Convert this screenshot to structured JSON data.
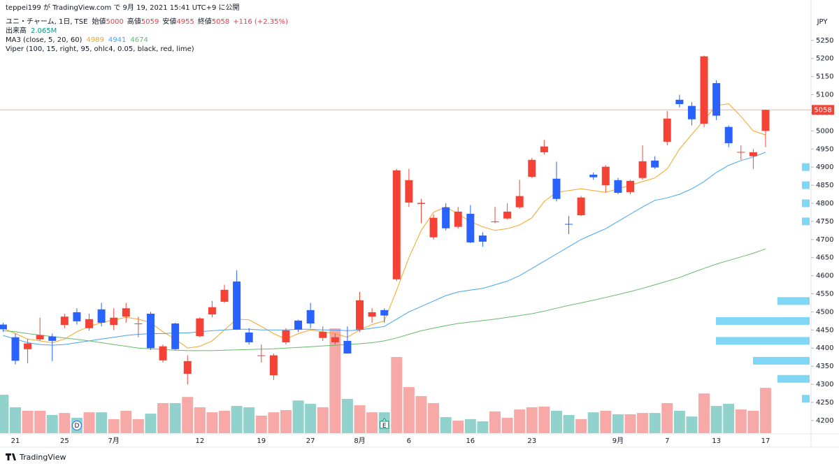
{
  "header": {
    "published": "teppei199 が TradingView.com で 9月 19, 2021 15:41 UTC+9 に公開",
    "symbol": "ユニ・チャーム, 1日, TSE",
    "ohlc_labels": [
      "始値",
      "高値",
      "安値",
      "終値"
    ],
    "change": "+116 (+2.35%)",
    "volume_title": "出来高",
    "volume_label": "2.065M",
    "ma_title": "MA3 (close, 5, 20, 60)",
    "viper_title": "Viper (100, 15, right, 95, ohlc4, 0.05, black, red, lime)",
    "currency": "JPY",
    "brand": "TradingView"
  },
  "chart_data": {
    "type": "candlestick",
    "categories": [
      null,
      "21",
      null,
      null,
      null,
      "25",
      null,
      null,
      null,
      "7月",
      null,
      null,
      null,
      null,
      null,
      null,
      "12",
      null,
      null,
      null,
      null,
      "19",
      null,
      null,
      null,
      "27",
      null,
      null,
      null,
      "8月",
      null,
      null,
      null,
      "6",
      null,
      null,
      null,
      null,
      "16",
      null,
      null,
      null,
      null,
      "23",
      null,
      null,
      null,
      null,
      null,
      null,
      "9月",
      null,
      null,
      null,
      "7",
      null,
      null,
      null,
      "13",
      null,
      null,
      null,
      "17"
    ],
    "open": [
      4465,
      4430,
      4397,
      4424,
      4432,
      4464,
      4499,
      4455,
      4507,
      4464,
      4487,
      4466,
      4495,
      4366,
      4468,
      4329,
      4433,
      4493,
      4528,
      4584,
      4443,
      4378,
      4325,
      4416,
      4476,
      4505,
      4428,
      4416,
      4420,
      4451,
      4487,
      4505,
      4590,
      4802,
      4798,
      4706,
      4789,
      4735,
      4771,
      4711,
      4748,
      4758,
      4789,
      4873,
      4941,
      4868,
      4743,
      4767,
      4879,
      4850,
      4864,
      4831,
      4870,
      4918,
      4970,
      5086,
      5069,
      5020,
      5132,
      5011,
      4940,
      4930,
      5000
    ],
    "high": [
      4470,
      4440,
      4425,
      4484,
      4440,
      4495,
      4510,
      4495,
      4525,
      4510,
      4525,
      4487,
      4500,
      4410,
      4470,
      4380,
      4485,
      4530,
      4575,
      4615,
      4455,
      4410,
      4385,
      4455,
      4478,
      4525,
      4460,
      4440,
      4460,
      4555,
      4510,
      4510,
      4895,
      4895,
      4812,
      4770,
      4800,
      4790,
      4795,
      4720,
      4790,
      4800,
      4865,
      4925,
      4975,
      4915,
      4765,
      4820,
      4885,
      4905,
      4870,
      4865,
      4960,
      4930,
      5055,
      5100,
      5080,
      5208,
      5140,
      5015,
      4960,
      4950,
      5059
    ],
    "low": [
      4445,
      4355,
      4358,
      4420,
      4364,
      4455,
      4465,
      4448,
      4460,
      4450,
      4470,
      4430,
      4395,
      4360,
      4395,
      4300,
      4430,
      4485,
      4525,
      4450,
      4410,
      4360,
      4312,
      4410,
      4445,
      4455,
      4420,
      4410,
      4385,
      4445,
      4470,
      4470,
      4585,
      4790,
      4745,
      4700,
      4725,
      4730,
      4690,
      4680,
      4745,
      4755,
      4785,
      4870,
      4935,
      4805,
      4715,
      4765,
      4865,
      4830,
      4825,
      4825,
      4865,
      4895,
      4960,
      5065,
      5015,
      5010,
      5030,
      4955,
      4920,
      4895,
      4955
    ],
    "close": [
      4452,
      4365,
      4413,
      4436,
      4420,
      4487,
      4474,
      4480,
      4470,
      4484,
      4510,
      4468,
      4400,
      4405,
      4397,
      4364,
      4482,
      4513,
      4561,
      4451,
      4416,
      4380,
      4380,
      4449,
      4451,
      4468,
      4445,
      4430,
      4385,
      4532,
      4499,
      4490,
      4891,
      4864,
      4801,
      4760,
      4731,
      4777,
      4692,
      4694,
      4750,
      4777,
      4820,
      4920,
      4957,
      4812,
      4741,
      4816,
      4872,
      4901,
      4829,
      4862,
      4916,
      4899,
      5034,
      5074,
      5032,
      5206,
      5042,
      4966,
      4942,
      4941,
      5058
    ],
    "up_color": "#f44336",
    "down_color": "#2962ff",
    "volume": {
      "values": [
        1.75,
        1.18,
        1.02,
        1.02,
        0.83,
        0.92,
        0.7,
        0.95,
        0.95,
        0.64,
        1.02,
        0.64,
        0.89,
        1.37,
        1.37,
        1.65,
        1.18,
        0.95,
        1.02,
        1.24,
        1.18,
        0.8,
        0.95,
        1.05,
        1.49,
        1.34,
        1.18,
        4.77,
        1.56,
        1.27,
        0.95,
        0.95,
        3.47,
        2.1,
        1.69,
        1.37,
        0.73,
        0.57,
        0.64,
        0.54,
        0.99,
        0.7,
        1.08,
        1.18,
        1.21,
        1.02,
        0.83,
        0.64,
        0.95,
        1.02,
        0.86,
        0.86,
        0.92,
        0.92,
        1.37,
        1.02,
        0.76,
        1.81,
        1.24,
        1.34,
        1.08,
        1.02,
        2.065
      ],
      "up_color": "#f7a9a7",
      "down_color": "#92d2cc",
      "ylim": [
        0,
        19.1
      ]
    },
    "ma": {
      "series": [
        {
          "color": "#f5a623",
          "values": [
            4455,
            4440,
            4425,
            4420,
            4415,
            4425,
            4445,
            4460,
            4470,
            4478,
            4485,
            4480,
            4470,
            4445,
            4425,
            4400,
            4405,
            4420,
            4450,
            4480,
            4478,
            4460,
            4440,
            4425,
            4440,
            4450,
            4445,
            4440,
            4430,
            4450,
            4465,
            4475,
            4560,
            4650,
            4725,
            4775,
            4790,
            4770,
            4750,
            4735,
            4725,
            4730,
            4740,
            4760,
            4805,
            4830,
            4835,
            4840,
            4835,
            4830,
            4840,
            4850,
            4860,
            4870,
            4895,
            4950,
            4990,
            5030,
            5070,
            5075,
            5040,
            5000,
            4989
          ]
        },
        {
          "color": "#42a5f5",
          "values": [
            4435,
            4425,
            4415,
            4410,
            4408,
            4410,
            4415,
            4420,
            4425,
            4430,
            4435,
            4438,
            4440,
            4440,
            4442,
            4442,
            4445,
            4448,
            4450,
            4452,
            4452,
            4450,
            4450,
            4450,
            4452,
            4452,
            4450,
            4450,
            4448,
            4450,
            4455,
            4460,
            4480,
            4500,
            4515,
            4530,
            4545,
            4555,
            4560,
            4565,
            4575,
            4585,
            4600,
            4620,
            4640,
            4660,
            4680,
            4700,
            4715,
            4730,
            4750,
            4770,
            4790,
            4808,
            4815,
            4825,
            4840,
            4860,
            4885,
            4905,
            4918,
            4928,
            4941
          ]
        },
        {
          "color": "#66bb6a",
          "values": [
            4448,
            4445,
            4440,
            4436,
            4432,
            4428,
            4424,
            4420,
            4415,
            4410,
            4405,
            4400,
            4398,
            4396,
            4394,
            4393,
            4393,
            4393,
            4394,
            4395,
            4396,
            4397,
            4398,
            4400,
            4402,
            4404,
            4406,
            4408,
            4410,
            4412,
            4415,
            4420,
            4428,
            4438,
            4448,
            4455,
            4462,
            4468,
            4472,
            4476,
            4480,
            4485,
            4490,
            4495,
            4502,
            4510,
            4518,
            4525,
            4532,
            4540,
            4548,
            4556,
            4565,
            4575,
            4585,
            4595,
            4608,
            4620,
            4632,
            4642,
            4652,
            4662,
            4674
          ]
        }
      ]
    },
    "profile": {
      "prices": [
        4900,
        4850,
        4800,
        4750,
        4530,
        4475,
        4420,
        4365,
        4315,
        4260
      ],
      "values": [
        11,
        11,
        11,
        11,
        46,
        134,
        134,
        81,
        46,
        11
      ],
      "color": "#7fd6f5"
    },
    "events": [
      {
        "index": 6,
        "label": "D",
        "color": "#2962ff"
      },
      {
        "index": 31,
        "label": "E",
        "color": "#089981"
      }
    ],
    "ylim": [
      4165,
      5323
    ],
    "yticks": [
      4200,
      4250,
      4300,
      4350,
      4400,
      4450,
      4500,
      4550,
      4600,
      4650,
      4700,
      4750,
      4800,
      4850,
      4900,
      4950,
      5000,
      5050,
      5100,
      5150,
      5200,
      5250
    ]
  }
}
